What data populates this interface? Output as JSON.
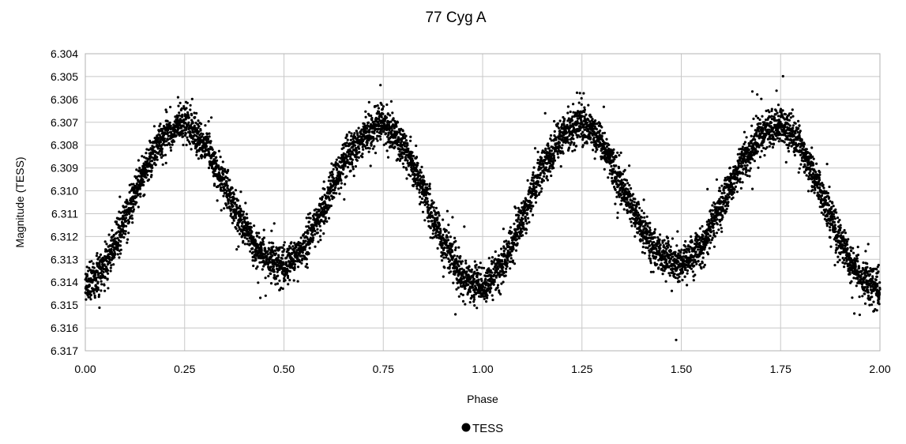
{
  "chart_data": {
    "type": "scatter",
    "title": "77 Cyg A",
    "xlabel": "Phase",
    "ylabel": "Magnitude (TESS)",
    "xlim": [
      0.0,
      2.0
    ],
    "ylim": [
      6.304,
      6.317
    ],
    "y_inverted": true,
    "x_ticks": [
      "0.00",
      "0.25",
      "0.50",
      "0.75",
      "1.00",
      "1.25",
      "1.50",
      "1.75",
      "2.00"
    ],
    "y_ticks": [
      "6.304",
      "6.305",
      "6.306",
      "6.307",
      "6.308",
      "6.309",
      "6.310",
      "6.311",
      "6.312",
      "6.313",
      "6.314",
      "6.315",
      "6.316",
      "6.317"
    ],
    "grid": true,
    "legend": {
      "position": "bottom",
      "entries": [
        "TESS"
      ]
    },
    "series": [
      {
        "name": "TESS",
        "marker": "circle",
        "color": "#000000",
        "x": [
          0.0,
          0.05,
          0.1,
          0.15,
          0.2,
          0.25,
          0.3,
          0.35,
          0.4,
          0.45,
          0.5,
          0.55,
          0.6,
          0.65,
          0.7,
          0.75,
          0.8,
          0.85,
          0.9,
          0.95,
          1.0,
          1.05,
          1.1,
          1.15,
          1.2,
          1.25,
          1.3,
          1.35,
          1.4,
          1.45,
          1.5,
          1.55,
          1.6,
          1.65,
          1.7,
          1.75,
          1.8,
          1.85,
          1.9,
          1.95,
          2.0
        ],
        "y": [
          6.3143,
          6.3133,
          6.3112,
          6.309,
          6.3076,
          6.307,
          6.3079,
          6.3098,
          6.3116,
          6.3129,
          6.3133,
          6.3125,
          6.3107,
          6.3088,
          6.3075,
          6.307,
          6.308,
          6.31,
          6.3122,
          6.3138,
          6.3143,
          6.3133,
          6.3112,
          6.309,
          6.3076,
          6.307,
          6.3079,
          6.3098,
          6.3116,
          6.3129,
          6.3133,
          6.3125,
          6.3107,
          6.3088,
          6.3075,
          6.307,
          6.308,
          6.31,
          6.3122,
          6.3138,
          6.3143
        ],
        "scatter_mag": 0.0004
      }
    ]
  }
}
